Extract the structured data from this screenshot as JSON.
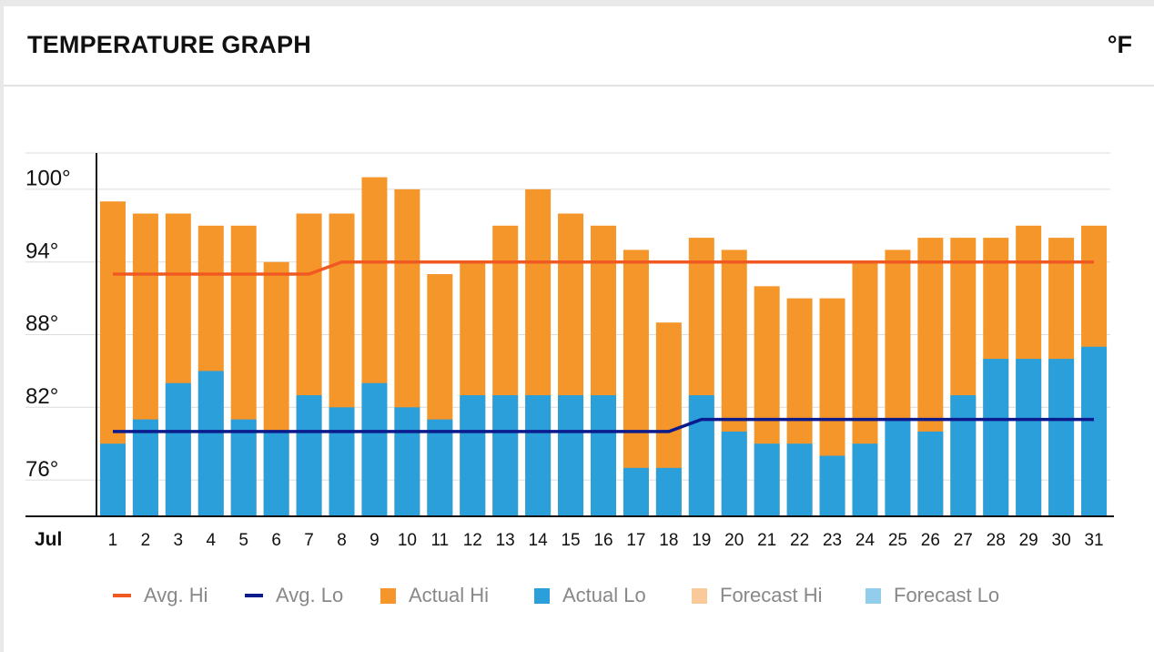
{
  "header": {
    "title": "TEMPERATURE GRAPH",
    "unit": "°F"
  },
  "chart_data": {
    "type": "bar",
    "month_label": "Jul",
    "categories": [
      "1",
      "2",
      "3",
      "4",
      "5",
      "6",
      "7",
      "8",
      "9",
      "10",
      "11",
      "12",
      "13",
      "14",
      "15",
      "16",
      "17",
      "18",
      "19",
      "20",
      "21",
      "22",
      "23",
      "24",
      "25",
      "26",
      "27",
      "28",
      "29",
      "30",
      "31"
    ],
    "y_ticks": [
      "100°",
      "94°",
      "88°",
      "82°",
      "76°"
    ],
    "y_tick_values": [
      100,
      94,
      88,
      82,
      76
    ],
    "ylim": [
      72,
      102
    ],
    "grid": true,
    "legend_position": "bottom",
    "series": [
      {
        "name": "Actual Hi",
        "kind": "bar",
        "color": "#f5962a",
        "values": [
          98,
          97,
          97,
          96,
          96,
          93,
          97,
          97,
          100,
          99,
          92,
          93,
          96,
          99,
          97,
          96,
          94,
          88,
          95,
          94,
          91,
          90,
          90,
          93,
          94,
          95,
          95,
          95,
          96,
          95,
          96
        ]
      },
      {
        "name": "Actual Lo",
        "kind": "bar",
        "color": "#2b9fd9",
        "values": [
          78,
          80,
          83,
          84,
          80,
          79,
          82,
          81,
          83,
          81,
          80,
          82,
          82,
          82,
          82,
          82,
          76,
          76,
          82,
          79,
          78,
          78,
          77,
          78,
          80,
          79,
          82,
          85,
          85,
          85,
          86
        ]
      },
      {
        "name": "Avg. Hi",
        "kind": "line",
        "color": "#f05a22",
        "values": [
          92,
          92,
          92,
          92,
          92,
          92,
          92,
          93,
          93,
          93,
          93,
          93,
          93,
          93,
          93,
          93,
          93,
          93,
          93,
          93,
          93,
          93,
          93,
          93,
          93,
          93,
          93,
          93,
          93,
          93,
          93
        ]
      },
      {
        "name": "Avg. Lo",
        "kind": "line",
        "color": "#0b1a8c",
        "values": [
          79,
          79,
          79,
          79,
          79,
          79,
          79,
          79,
          79,
          79,
          79,
          79,
          79,
          79,
          79,
          79,
          79,
          79,
          80,
          80,
          80,
          80,
          80,
          80,
          80,
          80,
          80,
          80,
          80,
          80,
          80
        ]
      }
    ],
    "legend": [
      {
        "label": "Avg. Hi",
        "color": "#f05a22",
        "shape": "line"
      },
      {
        "label": "Avg. Lo",
        "color": "#0b1a8c",
        "shape": "line"
      },
      {
        "label": "Actual Hi",
        "color": "#f5962a",
        "shape": "box"
      },
      {
        "label": "Actual Lo",
        "color": "#2b9fd9",
        "shape": "box"
      },
      {
        "label": "Forecast Hi",
        "color": "#fac99a",
        "shape": "box"
      },
      {
        "label": "Forecast Lo",
        "color": "#92cdec",
        "shape": "box"
      }
    ]
  }
}
